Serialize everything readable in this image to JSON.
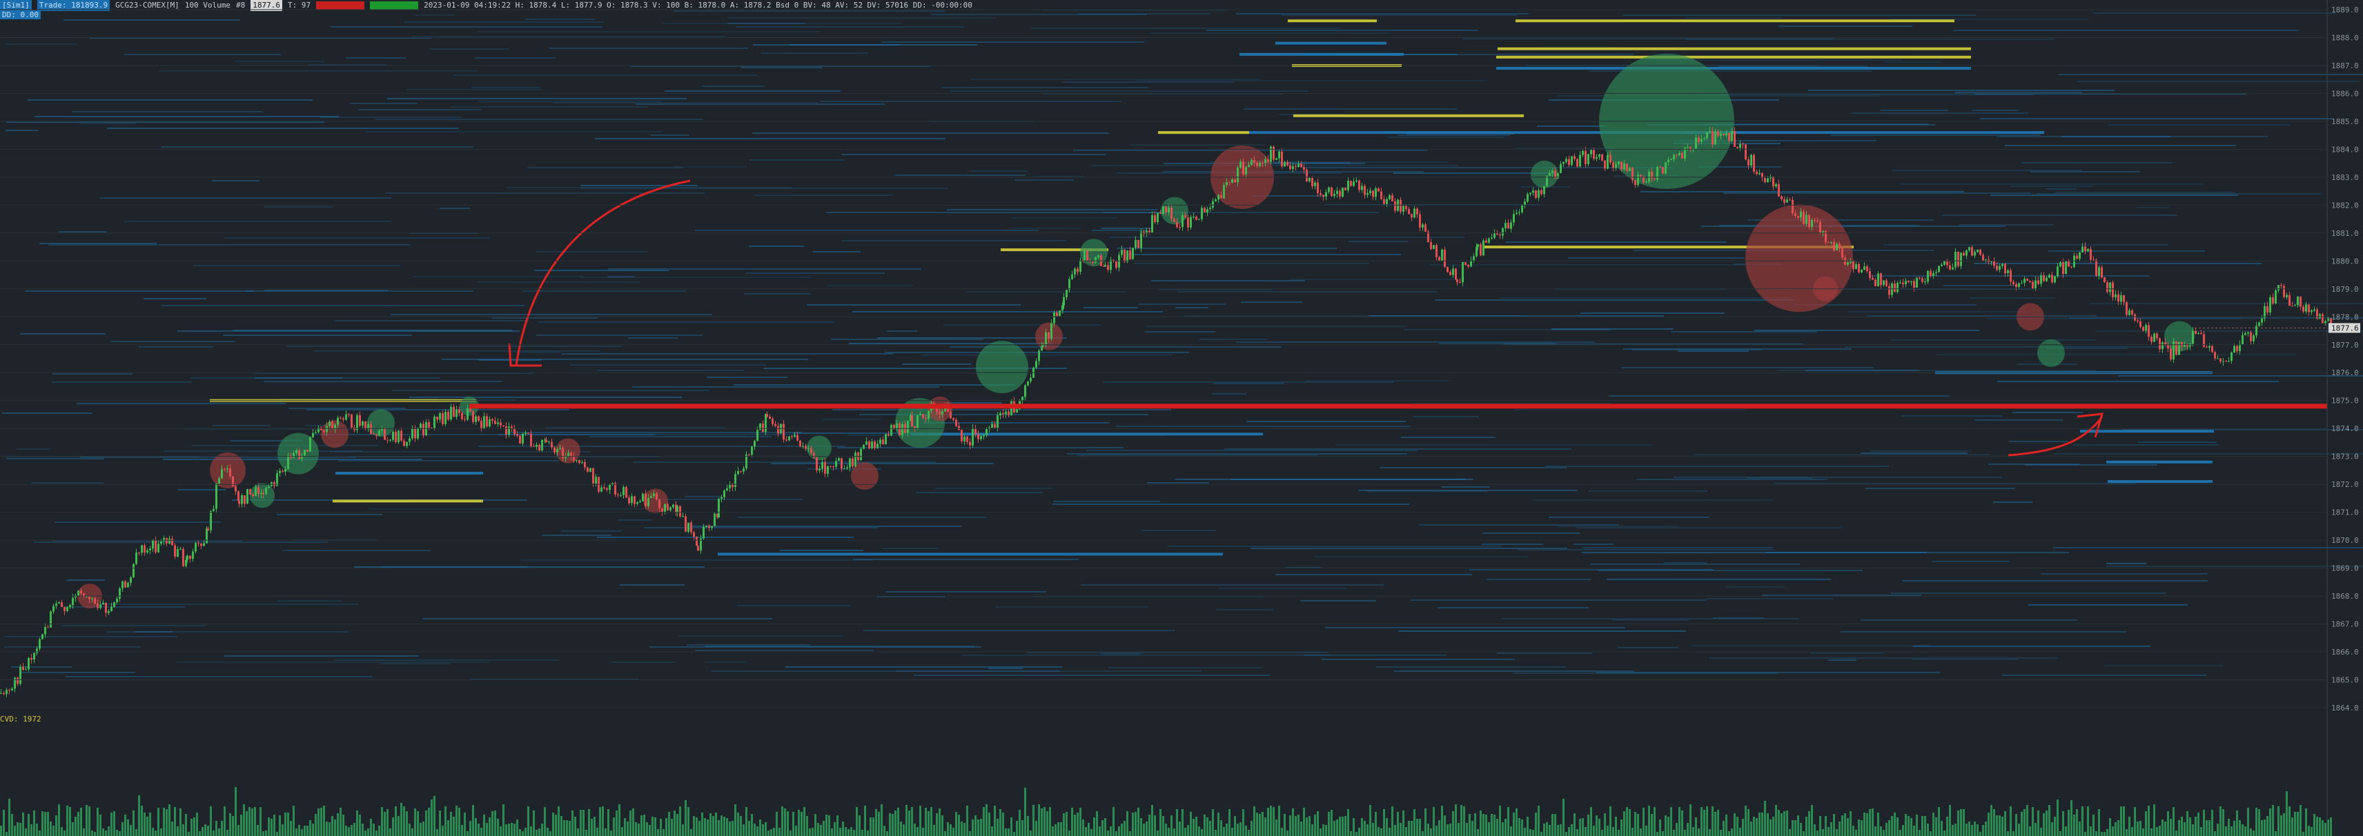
{
  "header": {
    "mode": "[Sim1]",
    "trade": "Trade: 181893.9",
    "instrument": "GCG23-COMEX[M]",
    "interval": "100 Volume",
    "count_label": "#8",
    "price_box": "1877.6",
    "t_label": "T: 97",
    "red_box": "",
    "green_box": "",
    "stats": "2023-01-09 04:19:22  H: 1878.4  L: 1877.9  O: 1878.3  V: 100  B: 1878.0  A: 1878.2  Bsd 0  BV: 48  AV: 52  DV: 57016  DD: -00:00:00"
  },
  "subheader": "DD: 0.00",
  "cvd_label": "CVD: 1972",
  "colors": {
    "background": "#1e2429",
    "up_candle": "#3fb950",
    "down_candle": "#e05050",
    "level_line": "#d41e1e",
    "bubble_buy": "#2e8b57",
    "bubble_sell": "#a03c3c",
    "volume_bar": "#2e9e5a",
    "heatmap_blue": "#1f7ab8",
    "heatmap_yellow": "#d6d03a"
  },
  "chart_data": {
    "type": "line",
    "ylim": [
      1864,
      1889
    ],
    "y_ticks": [
      1864,
      1865,
      1866,
      1867,
      1868,
      1869,
      1870,
      1871,
      1872,
      1873,
      1874,
      1875,
      1876,
      1877,
      1878,
      1879,
      1880,
      1881,
      1882,
      1883,
      1884,
      1885,
      1886,
      1887,
      1888,
      1889
    ],
    "current_price": 1877.6,
    "key_level": 1874.8,
    "price_path": [
      [
        0,
        1864.5
      ],
      [
        40,
        1865.5
      ],
      [
        80,
        1867.6
      ],
      [
        120,
        1868.0
      ],
      [
        160,
        1867.4
      ],
      [
        200,
        1869.5
      ],
      [
        240,
        1870.0
      ],
      [
        270,
        1869.2
      ],
      [
        300,
        1870.3
      ],
      [
        320,
        1872.8
      ],
      [
        345,
        1871.5
      ],
      [
        380,
        1871.8
      ],
      [
        420,
        1872.9
      ],
      [
        460,
        1873.8
      ],
      [
        500,
        1874.3
      ],
      [
        540,
        1874.0
      ],
      [
        580,
        1873.6
      ],
      [
        620,
        1874.1
      ],
      [
        660,
        1874.6
      ],
      [
        700,
        1874.2
      ],
      [
        740,
        1873.8
      ],
      [
        790,
        1873.4
      ],
      [
        830,
        1873.0
      ],
      [
        870,
        1871.9
      ],
      [
        910,
        1871.6
      ],
      [
        950,
        1871.4
      ],
      [
        980,
        1871.0
      ],
      [
        1010,
        1869.8
      ],
      [
        1040,
        1871.2
      ],
      [
        1080,
        1872.8
      ],
      [
        1110,
        1874.5
      ],
      [
        1150,
        1873.5
      ],
      [
        1190,
        1872.6
      ],
      [
        1230,
        1872.8
      ],
      [
        1270,
        1873.6
      ],
      [
        1320,
        1874.2
      ],
      [
        1360,
        1874.8
      ],
      [
        1400,
        1873.6
      ],
      [
        1440,
        1874.3
      ],
      [
        1480,
        1875.0
      ],
      [
        1510,
        1877.0
      ],
      [
        1540,
        1878.8
      ],
      [
        1570,
        1880.3
      ],
      [
        1600,
        1879.8
      ],
      [
        1640,
        1880.4
      ],
      [
        1680,
        1881.8
      ],
      [
        1720,
        1881.3
      ],
      [
        1760,
        1882.3
      ],
      [
        1800,
        1883.4
      ],
      [
        1840,
        1883.8
      ],
      [
        1880,
        1883.2
      ],
      [
        1920,
        1882.4
      ],
      [
        1960,
        1882.8
      ],
      [
        2000,
        1882.2
      ],
      [
        2040,
        1881.9
      ],
      [
        2080,
        1880.4
      ],
      [
        2110,
        1879.4
      ],
      [
        2140,
        1880.4
      ],
      [
        2180,
        1881.3
      ],
      [
        2220,
        1882.4
      ],
      [
        2260,
        1883.3
      ],
      [
        2300,
        1883.8
      ],
      [
        2340,
        1883.4
      ],
      [
        2380,
        1882.7
      ],
      [
        2420,
        1883.7
      ],
      [
        2460,
        1884.3
      ],
      [
        2500,
        1884.6
      ],
      [
        2540,
        1883.4
      ],
      [
        2580,
        1882.4
      ],
      [
        2620,
        1881.4
      ],
      [
        2660,
        1880.4
      ],
      [
        2700,
        1879.6
      ],
      [
        2740,
        1879.0
      ],
      [
        2780,
        1879.4
      ],
      [
        2820,
        1879.9
      ],
      [
        2860,
        1880.4
      ],
      [
        2900,
        1879.6
      ],
      [
        2940,
        1879.0
      ],
      [
        2980,
        1879.6
      ],
      [
        3020,
        1880.4
      ],
      [
        3060,
        1878.8
      ],
      [
        3100,
        1877.8
      ],
      [
        3140,
        1876.7
      ],
      [
        3180,
        1877.3
      ],
      [
        3220,
        1876.4
      ],
      [
        3260,
        1877.4
      ],
      [
        3300,
        1878.9
      ],
      [
        3340,
        1878.3
      ],
      [
        3380,
        1877.6
      ]
    ],
    "bubbles": [
      {
        "x": 130,
        "y": 1868.0,
        "r": 18,
        "side": "sell"
      },
      {
        "x": 330,
        "y": 1872.5,
        "r": 26,
        "side": "sell"
      },
      {
        "x": 380,
        "y": 1871.6,
        "r": 18,
        "side": "buy"
      },
      {
        "x": 432,
        "y": 1873.1,
        "r": 30,
        "side": "buy"
      },
      {
        "x": 485,
        "y": 1873.8,
        "r": 20,
        "side": "sell"
      },
      {
        "x": 552,
        "y": 1874.2,
        "r": 20,
        "side": "buy"
      },
      {
        "x": 680,
        "y": 1874.8,
        "r": 14,
        "side": "buy"
      },
      {
        "x": 823,
        "y": 1873.2,
        "r": 18,
        "side": "sell"
      },
      {
        "x": 950,
        "y": 1871.4,
        "r": 18,
        "side": "sell"
      },
      {
        "x": 1187,
        "y": 1873.3,
        "r": 18,
        "side": "buy"
      },
      {
        "x": 1253,
        "y": 1872.3,
        "r": 20,
        "side": "sell"
      },
      {
        "x": 1333,
        "y": 1874.2,
        "r": 36,
        "side": "buy"
      },
      {
        "x": 1362,
        "y": 1874.7,
        "r": 18,
        "side": "sell"
      },
      {
        "x": 1452,
        "y": 1876.2,
        "r": 38,
        "side": "buy"
      },
      {
        "x": 1520,
        "y": 1877.3,
        "r": 20,
        "side": "sell"
      },
      {
        "x": 1585,
        "y": 1880.3,
        "r": 20,
        "side": "buy"
      },
      {
        "x": 1702,
        "y": 1881.8,
        "r": 20,
        "side": "buy"
      },
      {
        "x": 1800,
        "y": 1883.0,
        "r": 46,
        "side": "sell"
      },
      {
        "x": 2238,
        "y": 1883.1,
        "r": 20,
        "side": "buy"
      },
      {
        "x": 2415,
        "y": 1885.0,
        "r": 98,
        "side": "buy"
      },
      {
        "x": 2607,
        "y": 1880.1,
        "r": 78,
        "side": "sell"
      },
      {
        "x": 2645,
        "y": 1879.0,
        "r": 18,
        "side": "sell"
      },
      {
        "x": 2942,
        "y": 1878.0,
        "r": 20,
        "side": "sell"
      },
      {
        "x": 2972,
        "y": 1876.7,
        "r": 20,
        "side": "buy"
      },
      {
        "x": 3158,
        "y": 1877.3,
        "r": 22,
        "side": "buy"
      }
    ],
    "resting_levels": [
      {
        "x1": 1866,
        "x2": 1995,
        "y": 1888.6,
        "color": "yellow"
      },
      {
        "x1": 2196,
        "x2": 2832,
        "y": 1888.6,
        "color": "yellow"
      },
      {
        "x1": 1848,
        "x2": 2009,
        "y": 1887.8,
        "color": "blue"
      },
      {
        "x1": 2170,
        "x2": 2856,
        "y": 1887.6,
        "color": "yellow"
      },
      {
        "x1": 1796,
        "x2": 2034,
        "y": 1887.4,
        "color": "blue"
      },
      {
        "x1": 2168,
        "x2": 2856,
        "y": 1887.3,
        "color": "yellow"
      },
      {
        "x1": 1872,
        "x2": 2031,
        "y": 1887.0,
        "color": "yellow"
      },
      {
        "x1": 2168,
        "x2": 2856,
        "y": 1886.9,
        "color": "blue"
      },
      {
        "x1": 1874,
        "x2": 2208,
        "y": 1885.2,
        "color": "yellow"
      },
      {
        "x1": 1678,
        "x2": 1810,
        "y": 1884.6,
        "color": "yellow"
      },
      {
        "x1": 1810,
        "x2": 2962,
        "y": 1884.6,
        "color": "blue"
      },
      {
        "x1": 1450,
        "x2": 1606,
        "y": 1880.4,
        "color": "yellow"
      },
      {
        "x1": 2148,
        "x2": 2686,
        "y": 1880.5,
        "color": "yellow"
      },
      {
        "x1": 304,
        "x2": 690,
        "y": 1875.0,
        "color": "yellow"
      },
      {
        "x1": 482,
        "x2": 700,
        "y": 1871.4,
        "color": "yellow"
      },
      {
        "x1": 486,
        "x2": 700,
        "y": 1872.4,
        "color": "blue"
      },
      {
        "x1": 1040,
        "x2": 1772,
        "y": 1869.5,
        "color": "blue"
      },
      {
        "x1": 1320,
        "x2": 1830,
        "y": 1873.8,
        "color": "blue"
      },
      {
        "x1": 3014,
        "x2": 3208,
        "y": 1873.9,
        "color": "blue"
      },
      {
        "x1": 3052,
        "x2": 3206,
        "y": 1872.8,
        "color": "blue"
      },
      {
        "x1": 3054,
        "x2": 3206,
        "y": 1872.1,
        "color": "blue"
      },
      {
        "x1": 2804,
        "x2": 3206,
        "y": 1876.0,
        "color": "blue"
      }
    ],
    "volume_bars": "per-bar volume histogram at bottom"
  }
}
